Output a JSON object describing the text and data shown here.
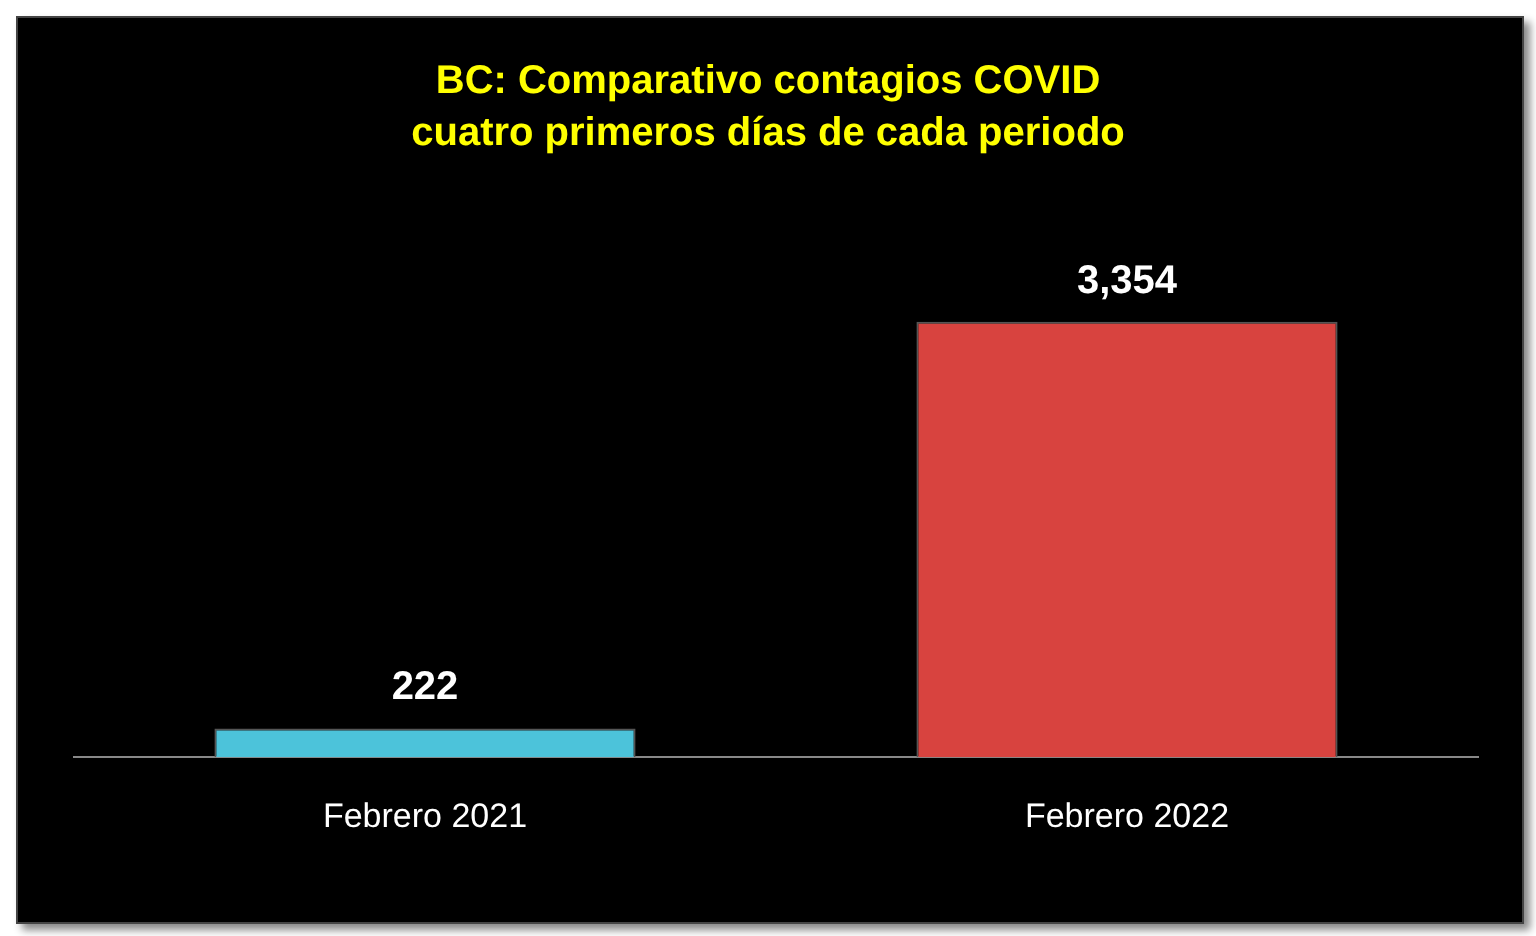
{
  "chart_data": {
    "type": "bar",
    "title": "BC: Comparativo contagios COVID",
    "subtitle": "cuatro primeros días de cada periodo",
    "categories": [
      "Febrero 2021",
      "Febrero 2022"
    ],
    "values": [
      222,
      3354
    ],
    "colors": [
      "#4cc3da",
      "#d8433f"
    ],
    "value_labels": [
      "222",
      "3,354"
    ],
    "relative": false,
    "grid": false,
    "legend": false
  }
}
